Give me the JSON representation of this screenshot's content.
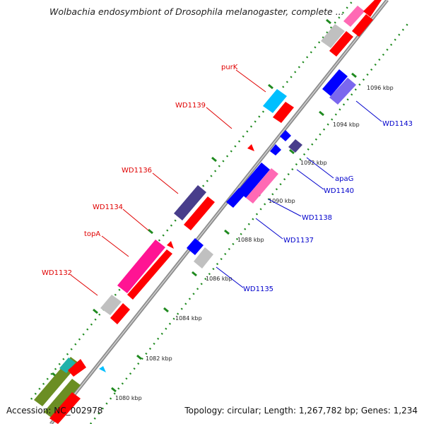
{
  "title": "Wolbachia endosymbiont of Drosophila melanogaster, complete ...",
  "footer": {
    "accession": "Accession: NC_002978",
    "summary": "Topology: circular; Length: 1,267,782 bp; Genes: 1,234"
  },
  "colors": {
    "top_strand_label": "#e00000",
    "bottom_strand_label": "#0000cc",
    "backbone": "#909090",
    "tick_marks": "#1f8a1f"
  },
  "ticks": [
    "1080 kbp",
    "1082 kbp",
    "1084 kbp",
    "1086 kbp",
    "1088 kbp",
    "1090 kbp",
    "1092 kbp",
    "1094 kbp",
    "1096 kbp"
  ],
  "top_labels": [
    "purK",
    "WD1139",
    "WD1136",
    "WD1134",
    "topA",
    "WD1132"
  ],
  "bottom_labels": [
    "WD1143",
    "apaG",
    "WD1140",
    "WD1138",
    "WD1137",
    "WD1135"
  ],
  "features": [
    {
      "name": "segment",
      "color": "#6b8e23"
    },
    {
      "name": "segment",
      "color": "#20b2aa"
    },
    {
      "name": "segment",
      "color": "#ff0000"
    },
    {
      "name": "segment",
      "color": "#c0c0c0"
    },
    {
      "name": "segment",
      "color": "#ff1493"
    },
    {
      "name": "segment",
      "color": "#483d8b"
    },
    {
      "name": "segment",
      "color": "#00bfff"
    },
    {
      "name": "segment",
      "color": "#0000ff"
    },
    {
      "name": "segment",
      "color": "#7b68ee"
    },
    {
      "name": "segment",
      "color": "#ff69b4"
    }
  ]
}
